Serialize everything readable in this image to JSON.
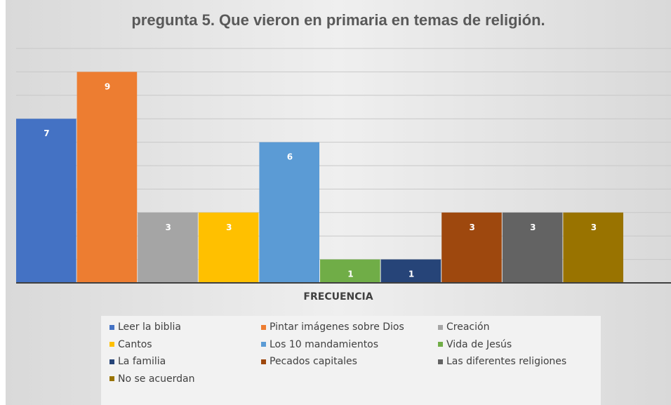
{
  "chart_data": {
    "type": "bar",
    "title": "pregunta 5. Que vieron en primaria en temas de religión.",
    "xlabel": "FRECUENCIA",
    "ylabel": "",
    "ylim": [
      0,
      10
    ],
    "grid": true,
    "legend_position": "bottom",
    "categories": [
      "FRECUENCIA"
    ],
    "series": [
      {
        "name": "Leer la biblia",
        "values": [
          7
        ],
        "color": "#4472c4"
      },
      {
        "name": "Pintar imágenes sobre Dios",
        "values": [
          9
        ],
        "color": "#ed7d31"
      },
      {
        "name": "Creación",
        "values": [
          3
        ],
        "color": "#a5a5a5"
      },
      {
        "name": "Cantos",
        "values": [
          3
        ],
        "color": "#ffc000"
      },
      {
        "name": "Los 10 mandamientos",
        "values": [
          6
        ],
        "color": "#5b9bd5"
      },
      {
        "name": "Vida de Jesús",
        "values": [
          1
        ],
        "color": "#70ad47"
      },
      {
        "name": "La familia",
        "values": [
          1
        ],
        "color": "#264478"
      },
      {
        "name": "Pecados capitales",
        "values": [
          3
        ],
        "color": "#9e480e"
      },
      {
        "name": "Las diferentes religiones",
        "values": [
          3
        ],
        "color": "#636363"
      },
      {
        "name": "No se acuerdan",
        "values": [
          3
        ],
        "color": "#997300"
      }
    ]
  }
}
